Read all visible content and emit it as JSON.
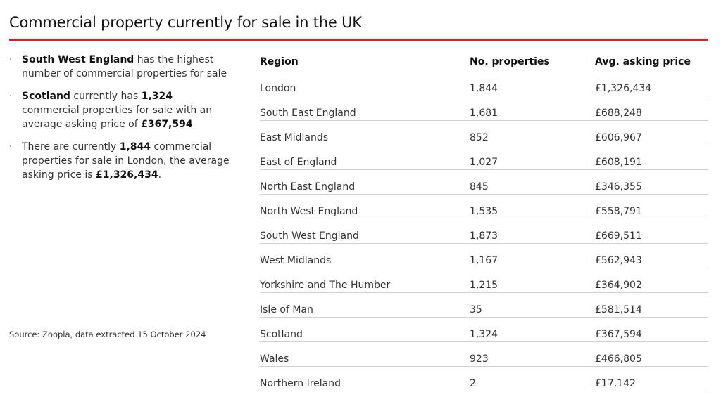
{
  "title": "Commercial property currently for sale in the UK",
  "colors": {
    "accent_rule": "#d42127"
  },
  "bullets": [
    {
      "parts": [
        {
          "t": "South West England",
          "b": true
        },
        {
          "t": " has the highest number of commercial properties for sale",
          "b": false
        }
      ]
    },
    {
      "parts": [
        {
          "t": "Scotland",
          "b": true
        },
        {
          "t": " currently has ",
          "b": false
        },
        {
          "t": "1,324",
          "b": true
        },
        {
          "t": " commercial properties for sale with an average asking price of ",
          "b": false
        },
        {
          "t": "£367,594",
          "b": true
        }
      ]
    },
    {
      "parts": [
        {
          "t": "There are currently ",
          "b": false
        },
        {
          "t": "1,844",
          "b": true
        },
        {
          "t": " commercial properties for sale in London, the average asking price is ",
          "b": false
        },
        {
          "t": "£1,326,434",
          "b": true
        },
        {
          "t": ".",
          "b": false
        }
      ]
    }
  ],
  "source": "Source: Zoopla, data extracted 15 October 2024",
  "chart_data": {
    "type": "table",
    "columns": [
      "Region",
      "No. properties",
      "Avg. asking price"
    ],
    "rows": [
      [
        "London",
        "1,844",
        "£1,326,434"
      ],
      [
        "South East England",
        "1,681",
        "£688,248"
      ],
      [
        "East Midlands",
        "852",
        "£606,967"
      ],
      [
        "East of England",
        "1,027",
        "£608,191"
      ],
      [
        "North East England",
        "845",
        "£346,355"
      ],
      [
        "North West England",
        "1,535",
        "£558,791"
      ],
      [
        "South West England",
        "1,873",
        "£669,511"
      ],
      [
        "West Midlands",
        "1,167",
        "£562,943"
      ],
      [
        "Yorkshire and The Humber",
        "1,215",
        "£364,902"
      ],
      [
        "Isle of Man",
        "35",
        "£581,514"
      ],
      [
        "Scotland",
        "1,324",
        "£367,594"
      ],
      [
        "Wales",
        "923",
        "£466,805"
      ],
      [
        "Northern Ireland",
        "2",
        "£17,142"
      ]
    ]
  }
}
